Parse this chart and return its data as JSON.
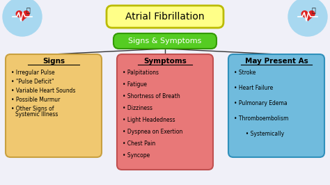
{
  "title": "Atrial Fibrillation",
  "title_box_color": "#FFFF88",
  "title_box_edge": "#BBBB00",
  "subtitle": "Signs & Symptoms",
  "subtitle_box_color": "#55CC22",
  "subtitle_box_edge": "#339900",
  "background_color": "#F0F0F8",
  "left_box": {
    "title": "Signs",
    "color": "#F0C870",
    "edge_color": "#C8A040",
    "items": [
      "Irregular Pulse",
      "\"Pulse Deficit\"",
      "Variable Heart Sounds",
      "Possible Murmur",
      "Other Signs of\nSystemic Illness"
    ]
  },
  "center_box": {
    "title": "Symptoms",
    "color": "#E87878",
    "edge_color": "#C05050",
    "items": [
      "Palpitations",
      "Fatigue",
      "Shortness of Breath",
      "Dizziness",
      "Light Headedness",
      "Dyspnea on Exertion",
      "Chest Pain",
      "Syncope"
    ]
  },
  "right_box": {
    "title": "May Present As",
    "color": "#70BBDD",
    "edge_color": "#3090BB",
    "items": [
      "Stroke",
      "Heart Failure",
      "Pulmonary Edema",
      "Thromboembolism",
      "Systemically"
    ],
    "item_indent": [
      0,
      0,
      0,
      0,
      12
    ]
  },
  "heart_circle_color": "#A8D8F0",
  "heart_color": "#DD2222"
}
